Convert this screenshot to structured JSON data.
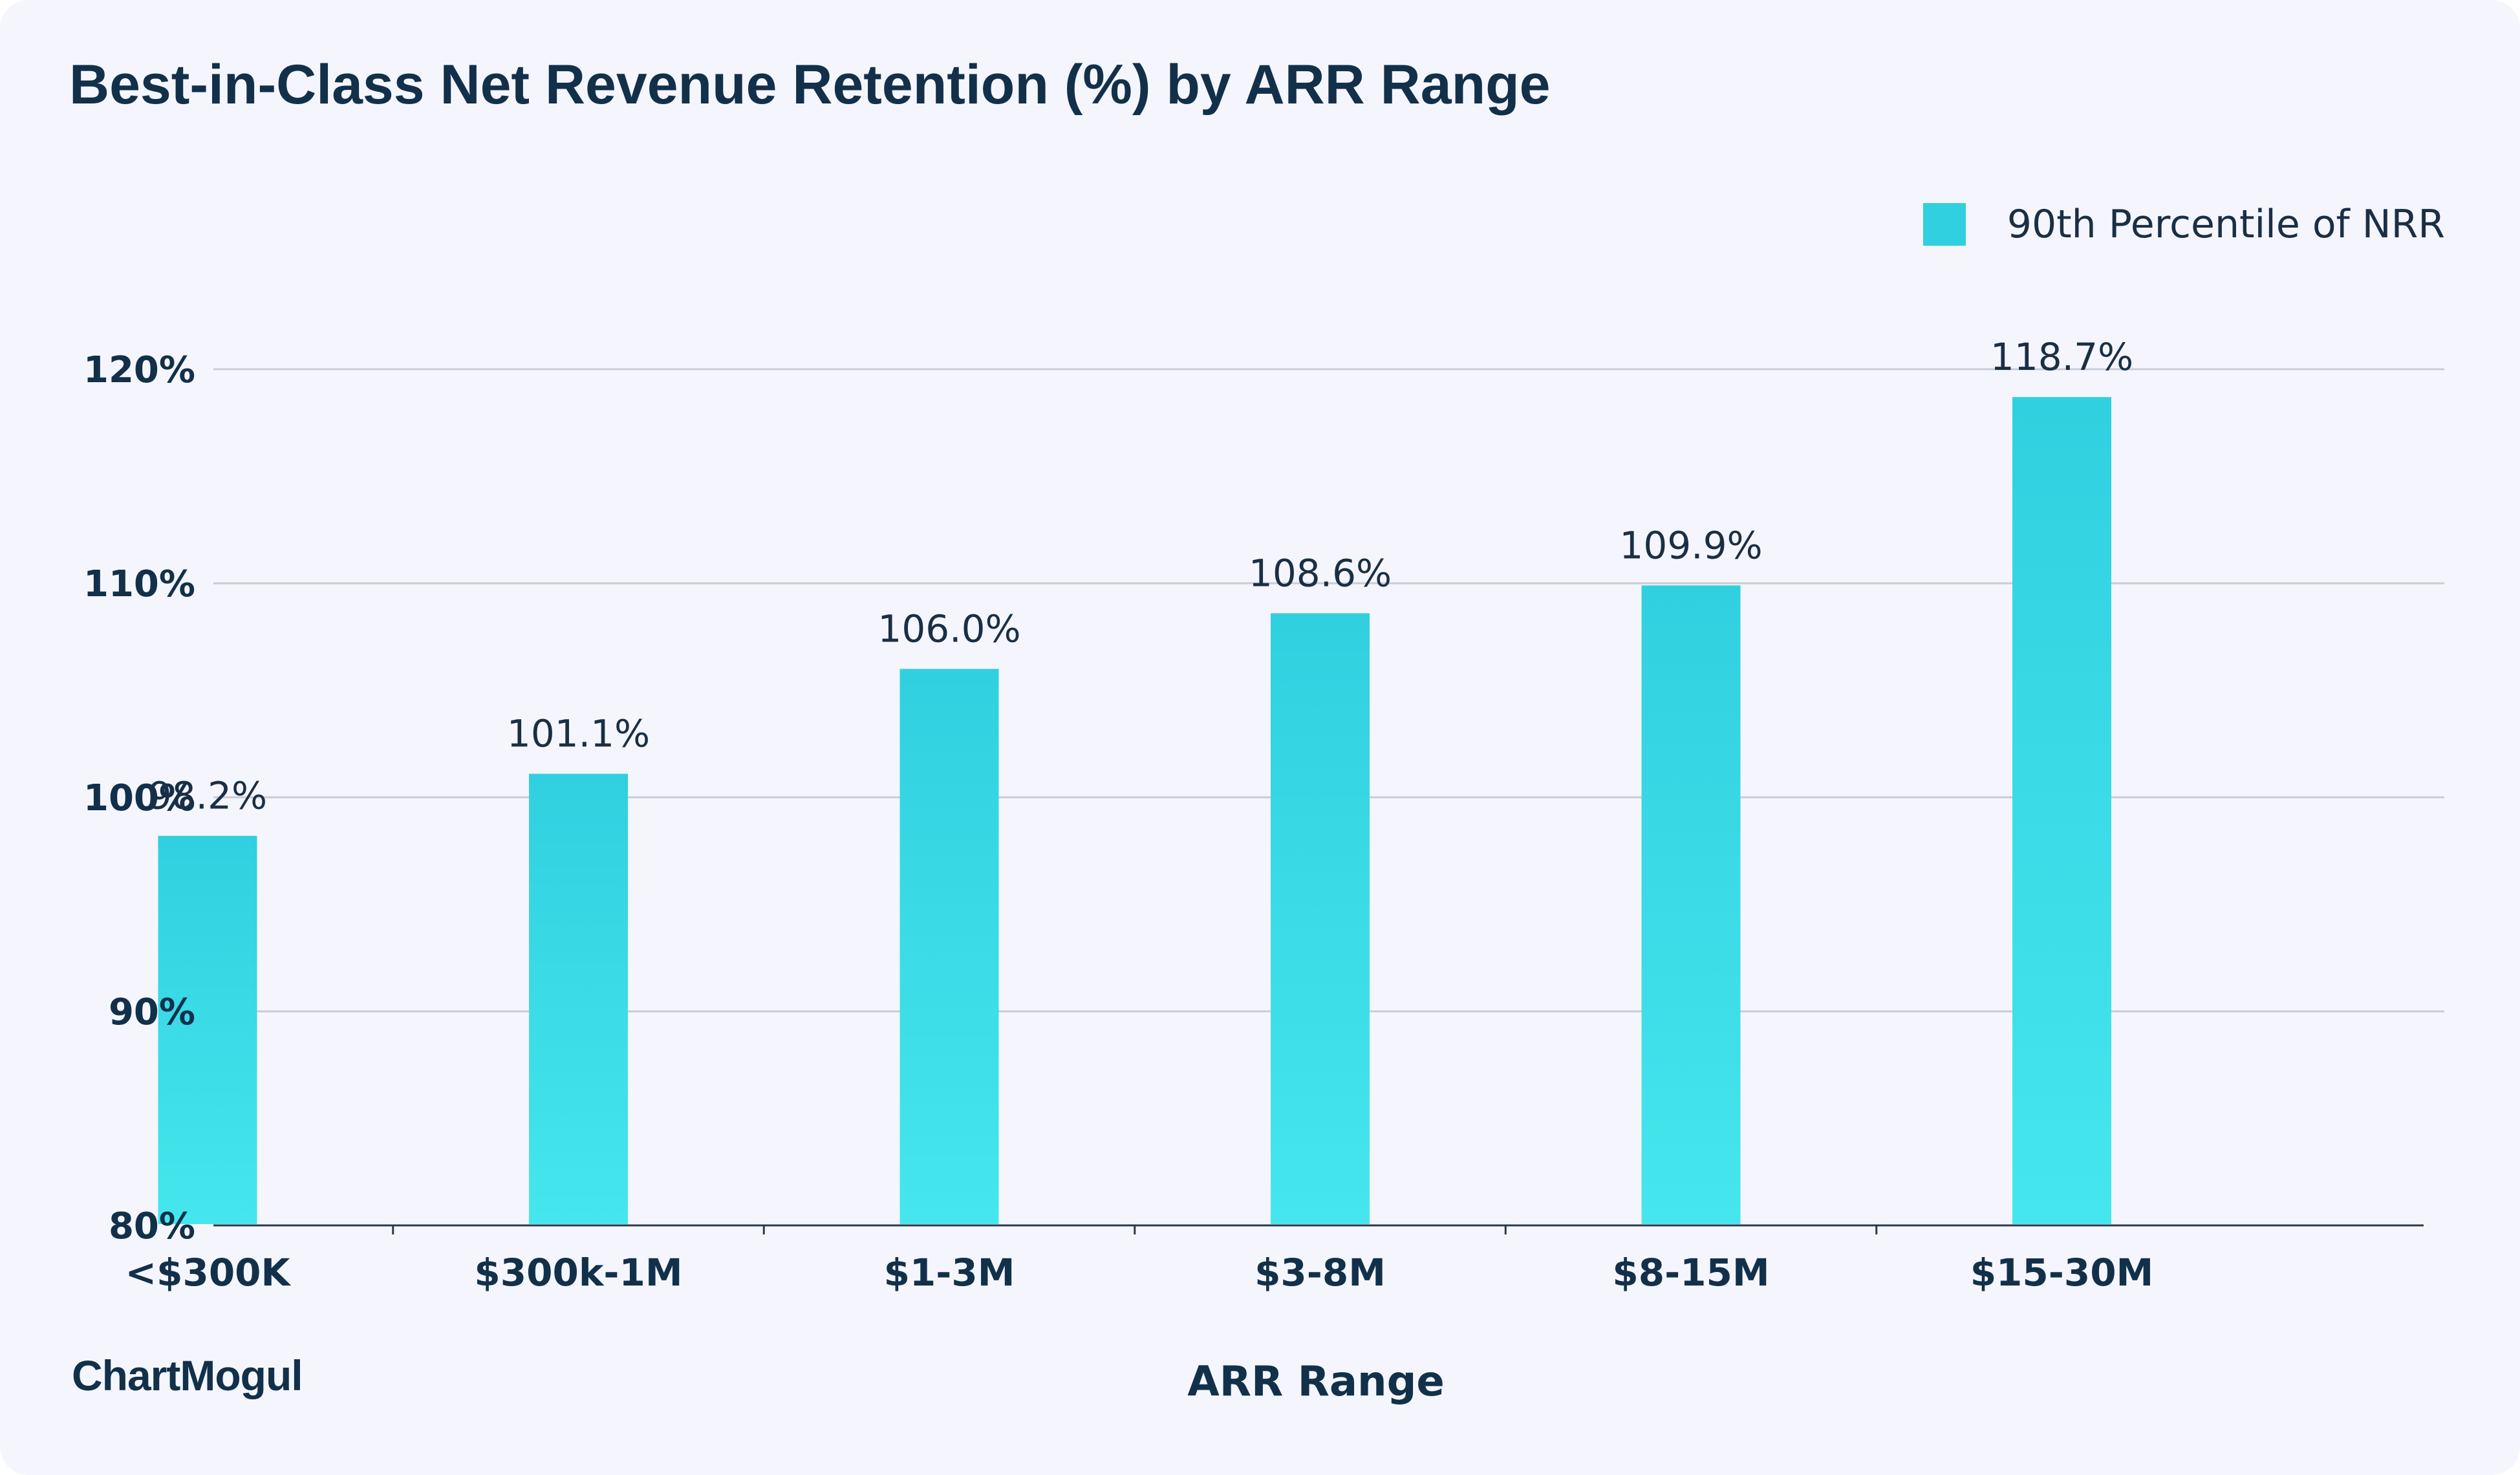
{
  "chart_data": {
    "type": "bar",
    "title": "Best-in-Class Net Revenue Retention (%) by ARR Range",
    "xlabel": "ARR Range",
    "ylabel": "",
    "categories": [
      "<$300K",
      "$300k-1M",
      "$1-3M",
      "$3-8M",
      "$8-15M",
      "$15-30M"
    ],
    "series": [
      {
        "name": "90th Percentile of NRR",
        "values": [
          98.2,
          101.1,
          106.0,
          108.6,
          109.9,
          118.7
        ],
        "data_labels": [
          "98.2%",
          "101.1%",
          "106.0%",
          "108.6%",
          "109.9%",
          "118.7%"
        ]
      }
    ],
    "ylim": [
      80,
      120
    ],
    "yticks": [
      80,
      90,
      100,
      110,
      120
    ],
    "ytick_labels": [
      "80%",
      "90%",
      "100%",
      "110%",
      "120%"
    ],
    "grid": true,
    "legend_position": "top-right"
  },
  "colors": {
    "bar_top": "#30d0e0",
    "bar_bottom": "#46e6ee",
    "grid": "#c9ccd6",
    "axis": "#2b3a4d",
    "background": "#f5f6fd"
  },
  "brand": {
    "logo_text": "ChartMogul"
  }
}
